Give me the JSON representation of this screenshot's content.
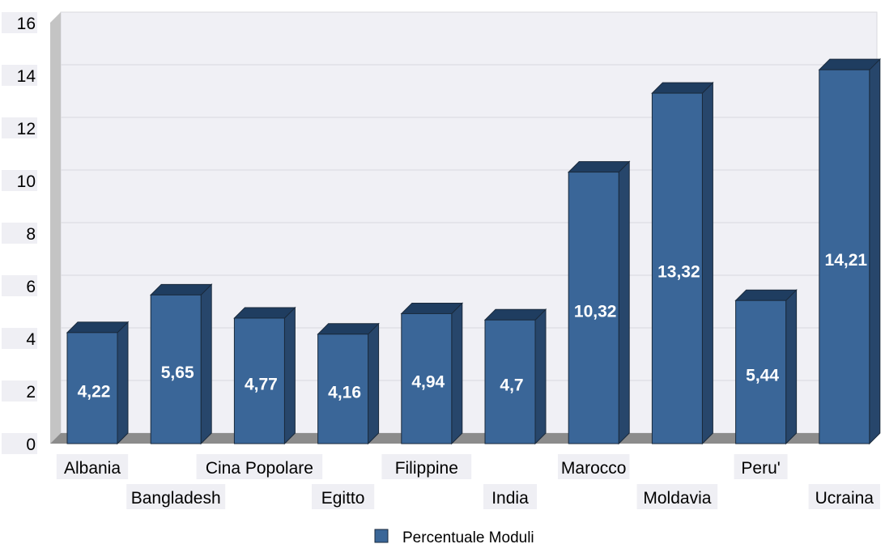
{
  "chart_data": {
    "type": "bar",
    "categories": [
      "Albania",
      "Bangladesh",
      "Cina Popolare",
      "Egitto",
      "Filippine",
      "India",
      "Marocco",
      "Moldavia",
      "Peru'",
      "Ucraina"
    ],
    "series": [
      {
        "name": "Percentuale Moduli",
        "values": [
          4.22,
          5.65,
          4.77,
          4.16,
          4.94,
          4.7,
          10.32,
          13.32,
          5.44,
          14.21
        ],
        "value_labels": [
          "4,22",
          "5,65",
          "4,77",
          "4,16",
          "4,94",
          "4,7",
          "10,32",
          "13,32",
          "5,44",
          "14,21"
        ]
      }
    ],
    "ylim": [
      0,
      16
    ],
    "yticks": [
      0,
      2,
      4,
      6,
      8,
      10,
      12,
      14,
      16
    ],
    "grid": true,
    "legend_position": "bottom-center",
    "style": "3d-bar",
    "colors": {
      "bar_front": "#3a6698",
      "bar_top": "#1f3d60",
      "bar_side": "#27466b",
      "bar_edge": "#1a2a3c",
      "plot_bg": "#f0f0f5",
      "grid": "#d9d9de",
      "floor": "#8c8c8c",
      "wall": "#c4c4c4",
      "label_bg": "#efeff4"
    }
  }
}
